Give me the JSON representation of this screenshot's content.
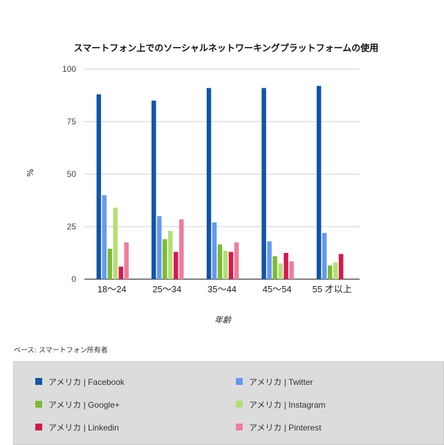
{
  "chart_data": {
    "type": "bar",
    "title": "スマートフォン上でのソーシャルネットワーキングプラットフォームの使用",
    "xlabel": "年齢",
    "ylabel": "%",
    "ylim": [
      0,
      100
    ],
    "yticks": [
      "0",
      "25",
      "50",
      "75",
      "100"
    ],
    "grid": true,
    "legend_position": "bottom",
    "categories": [
      "18〜24",
      "25〜34",
      "35〜44",
      "45〜54",
      "55 才以上"
    ],
    "series": [
      {
        "name": "アメリカ | Facebook",
        "color": "#1155a6",
        "values": [
          88,
          85,
          91,
          91,
          92
        ]
      },
      {
        "name": "アメリカ | Twitter",
        "color": "#6499f1",
        "values": [
          40,
          30,
          27,
          18,
          22
        ]
      },
      {
        "name": "アメリカ | Google+",
        "color": "#7dbb33",
        "values": [
          14.5,
          19,
          16.5,
          11,
          6.5
        ]
      },
      {
        "name": "アメリカ | Instagram",
        "color": "#b3df75",
        "values": [
          34,
          23,
          13.5,
          7.5,
          8
        ]
      },
      {
        "name": "アメリカ | Linkedin",
        "color": "#d5194d",
        "values": [
          6,
          13,
          13,
          12.5,
          12
        ]
      },
      {
        "name": "アメリカ | Pinterest",
        "color": "#ee7d9a",
        "values": [
          17.5,
          28.5,
          17.5,
          8.5,
          null
        ]
      }
    ]
  },
  "footnote": "ベース: スマートフォン所有者"
}
